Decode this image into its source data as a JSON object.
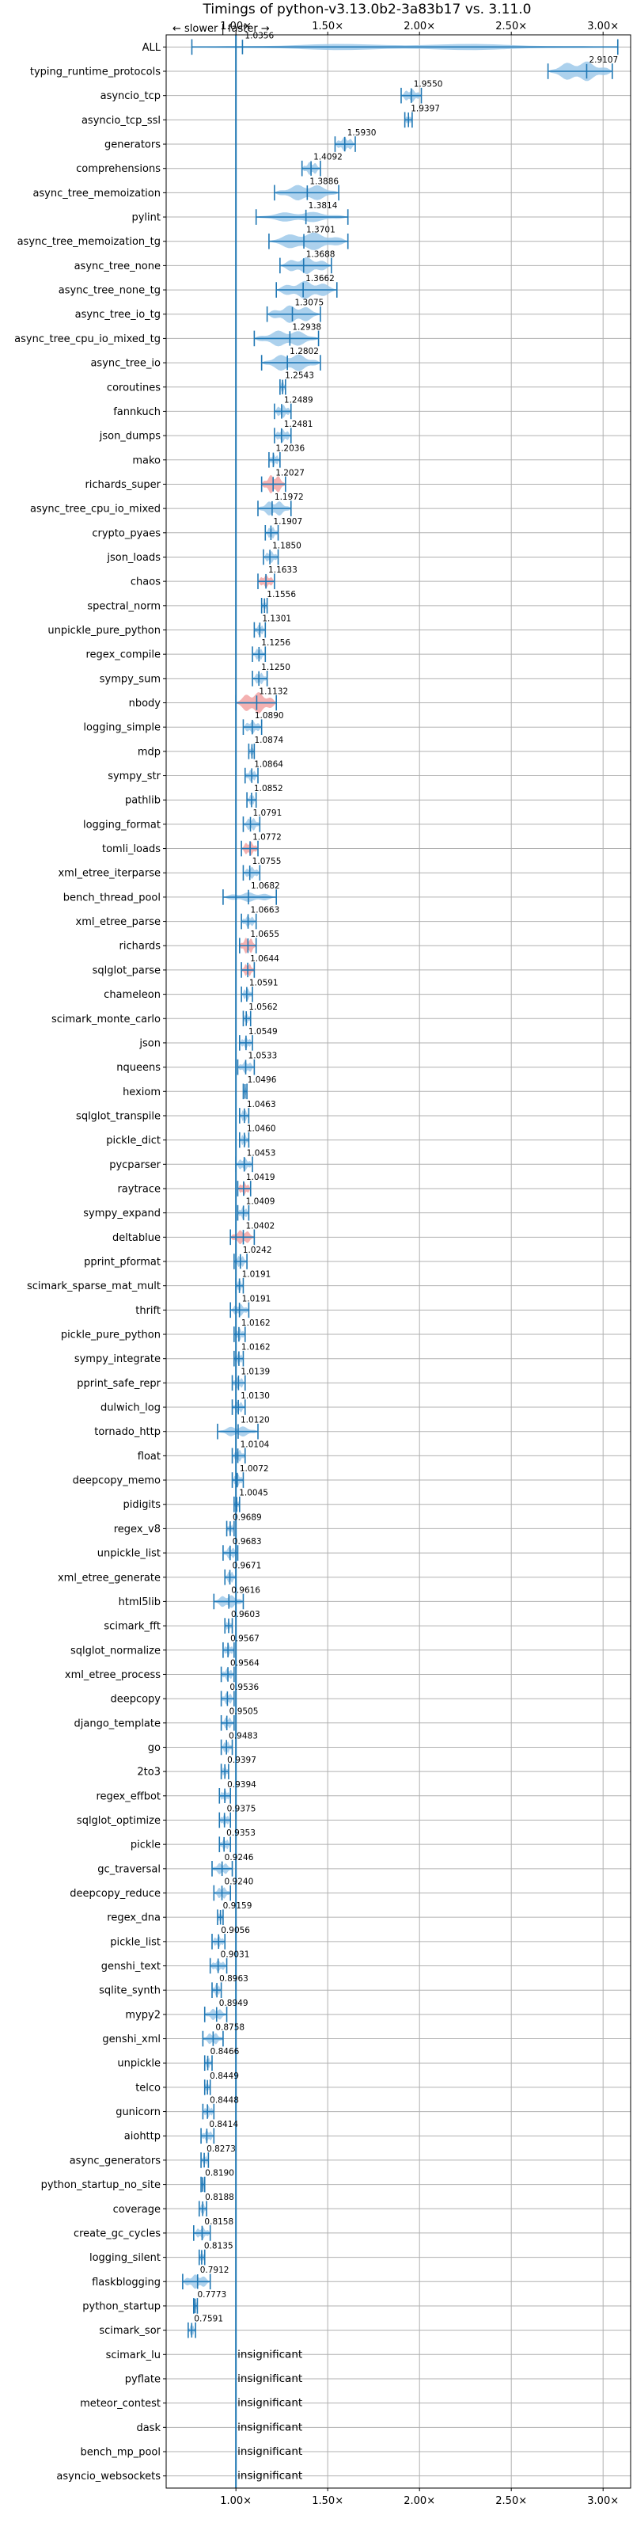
{
  "chart_data": {
    "type": "violin",
    "title": "Timings of python-v3.13.0b2-3a83b17 vs. 3.11.0",
    "direction_label": "← slower | faster →",
    "xticks": [
      1.0,
      1.5,
      2.0,
      2.5,
      3.0
    ],
    "xtick_labels": [
      "1.00×",
      "1.50×",
      "2.00×",
      "2.50×",
      "3.00×"
    ],
    "xlim": [
      0.62,
      3.15
    ],
    "grid": true,
    "reference_line": 1.0,
    "colors": {
      "faster": "#9ec9ea",
      "slower": "#f2a3a3",
      "line": "#1f77b4",
      "ref": "#1f77b4"
    },
    "insignificant_label": "insignificant",
    "benchmarks": [
      {
        "name": "ALL",
        "value": 1.0356,
        "label": "1.0356",
        "min": 0.76,
        "max": 3.08,
        "w": 0.28,
        "sig": "faster"
      },
      {
        "name": "typing_runtime_protocols",
        "value": 2.9107,
        "label": "2.9107",
        "min": 2.7,
        "max": 3.05,
        "w": 0.85,
        "sig": "faster"
      },
      {
        "name": "asyncio_tcp",
        "value": 1.955,
        "label": "1.9550",
        "min": 1.9,
        "max": 2.01,
        "w": 0.55,
        "sig": "faster"
      },
      {
        "name": "asyncio_tcp_ssl",
        "value": 1.9397,
        "label": "1.9397",
        "min": 1.92,
        "max": 1.96,
        "w": 0.45,
        "sig": "faster"
      },
      {
        "name": "generators",
        "value": 1.593,
        "label": "1.5930",
        "min": 1.54,
        "max": 1.65,
        "w": 0.6,
        "sig": "faster"
      },
      {
        "name": "comprehensions",
        "value": 1.4092,
        "label": "1.4092",
        "min": 1.36,
        "max": 1.46,
        "w": 0.55,
        "sig": "faster"
      },
      {
        "name": "async_tree_memoization",
        "value": 1.3886,
        "label": "1.3886",
        "min": 1.21,
        "max": 1.56,
        "w": 0.7,
        "sig": "faster"
      },
      {
        "name": "pylint",
        "value": 1.3814,
        "label": "1.3814",
        "min": 1.11,
        "max": 1.61,
        "w": 0.45,
        "sig": "faster"
      },
      {
        "name": "async_tree_memoization_tg",
        "value": 1.3701,
        "label": "1.3701",
        "min": 1.18,
        "max": 1.61,
        "w": 0.75,
        "sig": "faster"
      },
      {
        "name": "async_tree_none",
        "value": 1.3688,
        "label": "1.3688",
        "min": 1.24,
        "max": 1.52,
        "w": 0.7,
        "sig": "faster"
      },
      {
        "name": "async_tree_none_tg",
        "value": 1.3662,
        "label": "1.3662",
        "min": 1.22,
        "max": 1.55,
        "w": 0.75,
        "sig": "faster"
      },
      {
        "name": "async_tree_io_tg",
        "value": 1.3075,
        "label": "1.3075",
        "min": 1.17,
        "max": 1.46,
        "w": 0.75,
        "sig": "faster"
      },
      {
        "name": "async_tree_cpu_io_mixed_tg",
        "value": 1.2938,
        "label": "1.2938",
        "min": 1.1,
        "max": 1.45,
        "w": 0.7,
        "sig": "faster"
      },
      {
        "name": "async_tree_io",
        "value": 1.2802,
        "label": "1.2802",
        "min": 1.14,
        "max": 1.46,
        "w": 0.75,
        "sig": "faster"
      },
      {
        "name": "coroutines",
        "value": 1.2543,
        "label": "1.2543",
        "min": 1.24,
        "max": 1.27,
        "w": 0.5,
        "sig": "faster"
      },
      {
        "name": "fannkuch",
        "value": 1.2489,
        "label": "1.2489",
        "min": 1.21,
        "max": 1.3,
        "w": 0.55,
        "sig": "faster"
      },
      {
        "name": "json_dumps",
        "value": 1.2481,
        "label": "1.2481",
        "min": 1.21,
        "max": 1.3,
        "w": 0.55,
        "sig": "faster"
      },
      {
        "name": "mako",
        "value": 1.2036,
        "label": "1.2036",
        "min": 1.18,
        "max": 1.24,
        "w": 0.5,
        "sig": "faster"
      },
      {
        "name": "richards_super",
        "value": 1.2027,
        "label": "1.2027",
        "min": 1.14,
        "max": 1.27,
        "w": 0.8,
        "sig": "slower"
      },
      {
        "name": "async_tree_cpu_io_mixed",
        "value": 1.1972,
        "label": "1.1972",
        "min": 1.12,
        "max": 1.3,
        "w": 0.65,
        "sig": "faster"
      },
      {
        "name": "crypto_pyaes",
        "value": 1.1907,
        "label": "1.1907",
        "min": 1.16,
        "max": 1.23,
        "w": 0.5,
        "sig": "faster"
      },
      {
        "name": "json_loads",
        "value": 1.185,
        "label": "1.1850",
        "min": 1.15,
        "max": 1.23,
        "w": 0.5,
        "sig": "faster"
      },
      {
        "name": "chaos",
        "value": 1.1633,
        "label": "1.1633",
        "min": 1.12,
        "max": 1.21,
        "w": 0.55,
        "sig": "slower"
      },
      {
        "name": "spectral_norm",
        "value": 1.1556,
        "label": "1.1556",
        "min": 1.14,
        "max": 1.17,
        "w": 0.4,
        "sig": "faster"
      },
      {
        "name": "unpickle_pure_python",
        "value": 1.1301,
        "label": "1.1301",
        "min": 1.1,
        "max": 1.16,
        "w": 0.45,
        "sig": "faster"
      },
      {
        "name": "regex_compile",
        "value": 1.1256,
        "label": "1.1256",
        "min": 1.09,
        "max": 1.16,
        "w": 0.5,
        "sig": "faster"
      },
      {
        "name": "sympy_sum",
        "value": 1.125,
        "label": "1.1250",
        "min": 1.09,
        "max": 1.17,
        "w": 0.5,
        "sig": "faster"
      },
      {
        "name": "nbody",
        "value": 1.1132,
        "label": "1.1132",
        "min": 1.0,
        "max": 1.22,
        "w": 0.9,
        "sig": "slower"
      },
      {
        "name": "logging_simple",
        "value": 1.089,
        "label": "1.0890",
        "min": 1.04,
        "max": 1.14,
        "w": 0.55,
        "sig": "faster"
      },
      {
        "name": "mdp",
        "value": 1.0874,
        "label": "1.0874",
        "min": 1.07,
        "max": 1.1,
        "w": 0.4,
        "sig": "faster"
      },
      {
        "name": "sympy_str",
        "value": 1.0864,
        "label": "1.0864",
        "min": 1.05,
        "max": 1.12,
        "w": 0.5,
        "sig": "faster"
      },
      {
        "name": "pathlib",
        "value": 1.0852,
        "label": "1.0852",
        "min": 1.06,
        "max": 1.11,
        "w": 0.45,
        "sig": "faster"
      },
      {
        "name": "logging_format",
        "value": 1.0791,
        "label": "1.0791",
        "min": 1.04,
        "max": 1.13,
        "w": 0.55,
        "sig": "faster"
      },
      {
        "name": "tomli_loads",
        "value": 1.0772,
        "label": "1.0772",
        "min": 1.03,
        "max": 1.12,
        "w": 0.6,
        "sig": "slower"
      },
      {
        "name": "xml_etree_iterparse",
        "value": 1.0755,
        "label": "1.0755",
        "min": 1.04,
        "max": 1.13,
        "w": 0.5,
        "sig": "faster"
      },
      {
        "name": "bench_thread_pool",
        "value": 1.0682,
        "label": "1.0682",
        "min": 0.93,
        "max": 1.22,
        "w": 0.4,
        "sig": "faster"
      },
      {
        "name": "xml_etree_parse",
        "value": 1.0663,
        "label": "1.0663",
        "min": 1.03,
        "max": 1.11,
        "w": 0.5,
        "sig": "faster"
      },
      {
        "name": "richards",
        "value": 1.0655,
        "label": "1.0655",
        "min": 1.02,
        "max": 1.11,
        "w": 0.7,
        "sig": "slower"
      },
      {
        "name": "sqlglot_parse",
        "value": 1.0644,
        "label": "1.0644",
        "min": 1.03,
        "max": 1.1,
        "w": 0.55,
        "sig": "slower"
      },
      {
        "name": "chameleon",
        "value": 1.0591,
        "label": "1.0591",
        "min": 1.03,
        "max": 1.09,
        "w": 0.5,
        "sig": "faster"
      },
      {
        "name": "scimark_monte_carlo",
        "value": 1.0562,
        "label": "1.0562",
        "min": 1.04,
        "max": 1.08,
        "w": 0.4,
        "sig": "faster"
      },
      {
        "name": "json",
        "value": 1.0549,
        "label": "1.0549",
        "min": 1.02,
        "max": 1.09,
        "w": 0.5,
        "sig": "faster"
      },
      {
        "name": "nqueens",
        "value": 1.0533,
        "label": "1.0533",
        "min": 1.01,
        "max": 1.1,
        "w": 0.5,
        "sig": "faster"
      },
      {
        "name": "hexiom",
        "value": 1.0496,
        "label": "1.0496",
        "min": 1.04,
        "max": 1.06,
        "w": 0.4,
        "sig": "faster"
      },
      {
        "name": "sqlglot_transpile",
        "value": 1.0463,
        "label": "1.0463",
        "min": 1.02,
        "max": 1.07,
        "w": 0.5,
        "sig": "faster"
      },
      {
        "name": "pickle_dict",
        "value": 1.046,
        "label": "1.0460",
        "min": 1.02,
        "max": 1.07,
        "w": 0.5,
        "sig": "faster"
      },
      {
        "name": "pycparser",
        "value": 1.0453,
        "label": "1.0453",
        "min": 1.0,
        "max": 1.09,
        "w": 0.55,
        "sig": "faster"
      },
      {
        "name": "raytrace",
        "value": 1.0419,
        "label": "1.0419",
        "min": 1.01,
        "max": 1.08,
        "w": 0.55,
        "sig": "slower"
      },
      {
        "name": "sympy_expand",
        "value": 1.0409,
        "label": "1.0409",
        "min": 1.01,
        "max": 1.07,
        "w": 0.5,
        "sig": "faster"
      },
      {
        "name": "deltablue",
        "value": 1.0402,
        "label": "1.0402",
        "min": 0.97,
        "max": 1.1,
        "w": 0.6,
        "sig": "slower"
      },
      {
        "name": "pprint_pformat",
        "value": 1.0242,
        "label": "1.0242",
        "min": 0.99,
        "max": 1.06,
        "w": 0.5,
        "sig": "faster"
      },
      {
        "name": "scimark_sparse_mat_mult",
        "value": 1.0191,
        "label": "1.0191",
        "min": 1.0,
        "max": 1.04,
        "w": 0.45,
        "sig": "faster"
      },
      {
        "name": "thrift",
        "value": 1.0191,
        "label": "1.0191",
        "min": 0.97,
        "max": 1.07,
        "w": 0.5,
        "sig": "faster"
      },
      {
        "name": "pickle_pure_python",
        "value": 1.0162,
        "label": "1.0162",
        "min": 0.99,
        "max": 1.05,
        "w": 0.5,
        "sig": "faster"
      },
      {
        "name": "sympy_integrate",
        "value": 1.0162,
        "label": "1.0162",
        "min": 0.99,
        "max": 1.04,
        "w": 0.5,
        "sig": "faster"
      },
      {
        "name": "pprint_safe_repr",
        "value": 1.0139,
        "label": "1.0139",
        "min": 0.98,
        "max": 1.05,
        "w": 0.5,
        "sig": "faster"
      },
      {
        "name": "dulwich_log",
        "value": 1.013,
        "label": "1.0130",
        "min": 0.98,
        "max": 1.05,
        "w": 0.5,
        "sig": "faster"
      },
      {
        "name": "tornado_http",
        "value": 1.012,
        "label": "1.0120",
        "min": 0.9,
        "max": 1.12,
        "w": 0.45,
        "sig": "faster"
      },
      {
        "name": "float",
        "value": 1.0104,
        "label": "1.0104",
        "min": 0.98,
        "max": 1.05,
        "w": 0.5,
        "sig": "faster"
      },
      {
        "name": "deepcopy_memo",
        "value": 1.0072,
        "label": "1.0072",
        "min": 0.98,
        "max": 1.04,
        "w": 0.5,
        "sig": "faster"
      },
      {
        "name": "pidigits",
        "value": 1.0045,
        "label": "1.0045",
        "min": 0.99,
        "max": 1.02,
        "w": 0.4,
        "sig": "faster"
      },
      {
        "name": "regex_v8",
        "value": 0.9689,
        "label": "0.9689",
        "min": 0.95,
        "max": 0.99,
        "w": 0.45,
        "sig": "faster"
      },
      {
        "name": "unpickle_list",
        "value": 0.9683,
        "label": "0.9683",
        "min": 0.93,
        "max": 1.01,
        "w": 0.5,
        "sig": "faster"
      },
      {
        "name": "xml_etree_generate",
        "value": 0.9671,
        "label": "0.9671",
        "min": 0.94,
        "max": 1.0,
        "w": 0.5,
        "sig": "faster"
      },
      {
        "name": "html5lib",
        "value": 0.9616,
        "label": "0.9616",
        "min": 0.88,
        "max": 1.04,
        "w": 0.55,
        "sig": "faster"
      },
      {
        "name": "scimark_fft",
        "value": 0.9603,
        "label": "0.9603",
        "min": 0.94,
        "max": 0.98,
        "w": 0.45,
        "sig": "faster"
      },
      {
        "name": "sqlglot_normalize",
        "value": 0.9567,
        "label": "0.9567",
        "min": 0.93,
        "max": 0.99,
        "w": 0.5,
        "sig": "faster"
      },
      {
        "name": "xml_etree_process",
        "value": 0.9564,
        "label": "0.9564",
        "min": 0.92,
        "max": 0.99,
        "w": 0.5,
        "sig": "faster"
      },
      {
        "name": "deepcopy",
        "value": 0.9536,
        "label": "0.9536",
        "min": 0.92,
        "max": 0.99,
        "w": 0.5,
        "sig": "faster"
      },
      {
        "name": "django_template",
        "value": 0.9505,
        "label": "0.9505",
        "min": 0.92,
        "max": 0.99,
        "w": 0.5,
        "sig": "faster"
      },
      {
        "name": "go",
        "value": 0.9483,
        "label": "0.9483",
        "min": 0.92,
        "max": 0.98,
        "w": 0.5,
        "sig": "faster"
      },
      {
        "name": "2to3",
        "value": 0.9397,
        "label": "0.9397",
        "min": 0.92,
        "max": 0.96,
        "w": 0.45,
        "sig": "faster"
      },
      {
        "name": "regex_effbot",
        "value": 0.9394,
        "label": "0.9394",
        "min": 0.91,
        "max": 0.97,
        "w": 0.5,
        "sig": "faster"
      },
      {
        "name": "sqlglot_optimize",
        "value": 0.9375,
        "label": "0.9375",
        "min": 0.91,
        "max": 0.97,
        "w": 0.5,
        "sig": "faster"
      },
      {
        "name": "pickle",
        "value": 0.9353,
        "label": "0.9353",
        "min": 0.91,
        "max": 0.97,
        "w": 0.5,
        "sig": "faster"
      },
      {
        "name": "gc_traversal",
        "value": 0.9246,
        "label": "0.9246",
        "min": 0.87,
        "max": 0.98,
        "w": 0.5,
        "sig": "faster"
      },
      {
        "name": "deepcopy_reduce",
        "value": 0.924,
        "label": "0.9240",
        "min": 0.88,
        "max": 0.97,
        "w": 0.5,
        "sig": "faster"
      },
      {
        "name": "regex_dna",
        "value": 0.9159,
        "label": "0.9159",
        "min": 0.9,
        "max": 0.93,
        "w": 0.45,
        "sig": "faster"
      },
      {
        "name": "pickle_list",
        "value": 0.9056,
        "label": "0.9056",
        "min": 0.87,
        "max": 0.94,
        "w": 0.5,
        "sig": "faster"
      },
      {
        "name": "genshi_text",
        "value": 0.9031,
        "label": "0.9031",
        "min": 0.86,
        "max": 0.95,
        "w": 0.5,
        "sig": "faster"
      },
      {
        "name": "sqlite_synth",
        "value": 0.8963,
        "label": "0.8963",
        "min": 0.87,
        "max": 0.92,
        "w": 0.5,
        "sig": "faster"
      },
      {
        "name": "mypy2",
        "value": 0.8949,
        "label": "0.8949",
        "min": 0.83,
        "max": 0.95,
        "w": 0.5,
        "sig": "faster"
      },
      {
        "name": "genshi_xml",
        "value": 0.8758,
        "label": "0.8758",
        "min": 0.82,
        "max": 0.93,
        "w": 0.5,
        "sig": "faster"
      },
      {
        "name": "unpickle",
        "value": 0.8466,
        "label": "0.8466",
        "min": 0.83,
        "max": 0.87,
        "w": 0.45,
        "sig": "faster"
      },
      {
        "name": "telco",
        "value": 0.8449,
        "label": "0.8449",
        "min": 0.83,
        "max": 0.86,
        "w": 0.45,
        "sig": "faster"
      },
      {
        "name": "gunicorn",
        "value": 0.8448,
        "label": "0.8448",
        "min": 0.82,
        "max": 0.88,
        "w": 0.5,
        "sig": "faster"
      },
      {
        "name": "aiohttp",
        "value": 0.8414,
        "label": "0.8414",
        "min": 0.81,
        "max": 0.88,
        "w": 0.5,
        "sig": "faster"
      },
      {
        "name": "async_generators",
        "value": 0.8273,
        "label": "0.8273",
        "min": 0.81,
        "max": 0.85,
        "w": 0.45,
        "sig": "faster"
      },
      {
        "name": "python_startup_no_site",
        "value": 0.819,
        "label": "0.8190",
        "min": 0.81,
        "max": 0.83,
        "w": 0.45,
        "sig": "faster"
      },
      {
        "name": "coverage",
        "value": 0.8188,
        "label": "0.8188",
        "min": 0.8,
        "max": 0.84,
        "w": 0.45,
        "sig": "faster"
      },
      {
        "name": "create_gc_cycles",
        "value": 0.8158,
        "label": "0.8158",
        "min": 0.77,
        "max": 0.86,
        "w": 0.5,
        "sig": "faster"
      },
      {
        "name": "logging_silent",
        "value": 0.8135,
        "label": "0.8135",
        "min": 0.8,
        "max": 0.83,
        "w": 0.45,
        "sig": "faster"
      },
      {
        "name": "flaskblogging",
        "value": 0.7912,
        "label": "0.7912",
        "min": 0.71,
        "max": 0.86,
        "w": 0.6,
        "sig": "faster"
      },
      {
        "name": "python_startup",
        "value": 0.7773,
        "label": "0.7773",
        "min": 0.77,
        "max": 0.79,
        "w": 0.4,
        "sig": "faster"
      },
      {
        "name": "scimark_sor",
        "value": 0.7591,
        "label": "0.7591",
        "min": 0.74,
        "max": 0.78,
        "w": 0.45,
        "sig": "faster"
      },
      {
        "name": "scimark_lu",
        "value": null,
        "label": "",
        "sig": "insignificant"
      },
      {
        "name": "pyflate",
        "value": null,
        "label": "",
        "sig": "insignificant"
      },
      {
        "name": "meteor_contest",
        "value": null,
        "label": "",
        "sig": "insignificant"
      },
      {
        "name": "dask",
        "value": null,
        "label": "",
        "sig": "insignificant"
      },
      {
        "name": "bench_mp_pool",
        "value": null,
        "label": "",
        "sig": "insignificant"
      },
      {
        "name": "asyncio_websockets",
        "value": null,
        "label": "",
        "sig": "insignificant"
      }
    ]
  }
}
